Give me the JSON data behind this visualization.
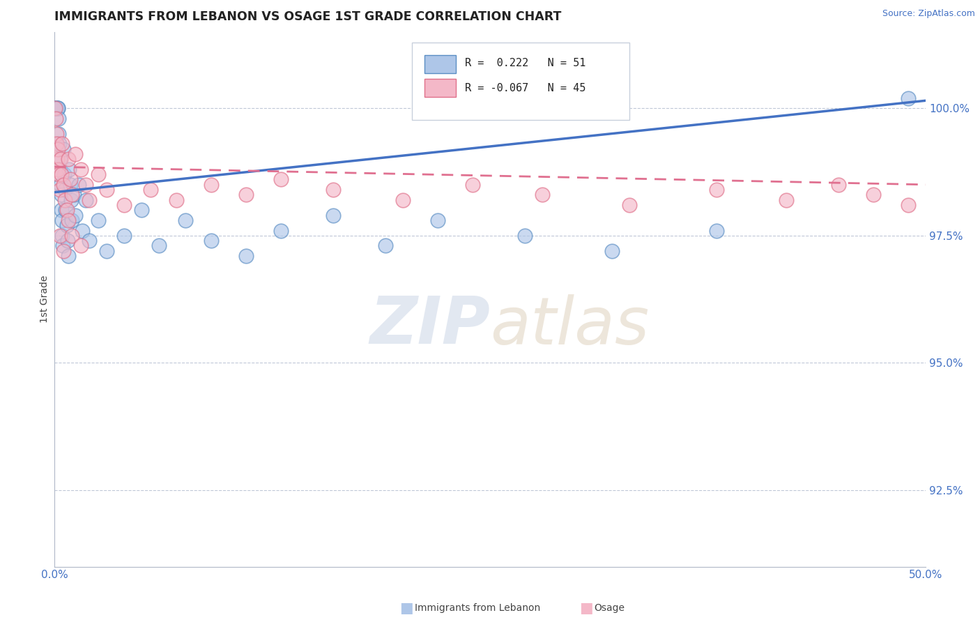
{
  "title": "IMMIGRANTS FROM LEBANON VS OSAGE 1ST GRADE CORRELATION CHART",
  "source_text": "Source: ZipAtlas.com",
  "ylabel": "1st Grade",
  "xlim": [
    0.0,
    50.0
  ],
  "ylim": [
    91.0,
    101.5
  ],
  "yticks": [
    92.5,
    95.0,
    97.5,
    100.0
  ],
  "ytick_labels": [
    "92.5%",
    "95.0%",
    "97.5%",
    "100.0%"
  ],
  "blue_R": 0.222,
  "blue_N": 51,
  "pink_R": -0.067,
  "pink_N": 45,
  "blue_color": "#aec6e8",
  "pink_color": "#f4b8c8",
  "blue_edge_color": "#5b8ec4",
  "pink_edge_color": "#e0708a",
  "blue_line_color": "#4472c4",
  "pink_line_color": "#e07090",
  "blue_trend_x0": 0.0,
  "blue_trend_y0": 98.35,
  "blue_trend_x1": 50.0,
  "blue_trend_y1": 100.15,
  "pink_trend_x0": 0.0,
  "pink_trend_y0": 98.85,
  "pink_trend_x1": 50.0,
  "pink_trend_y1": 98.5,
  "blue_x": [
    0.05,
    0.08,
    0.1,
    0.12,
    0.15,
    0.18,
    0.2,
    0.22,
    0.25,
    0.28,
    0.3,
    0.32,
    0.35,
    0.38,
    0.4,
    0.42,
    0.45,
    0.48,
    0.5,
    0.55,
    0.6,
    0.65,
    0.7,
    0.75,
    0.8,
    0.85,
    0.9,
    0.95,
    1.0,
    1.1,
    1.2,
    1.4,
    1.6,
    1.8,
    2.0,
    2.5,
    3.0,
    4.0,
    5.0,
    6.0,
    7.5,
    9.0,
    11.0,
    13.0,
    16.0,
    19.0,
    22.0,
    27.0,
    32.0,
    38.0,
    49.0
  ],
  "blue_y": [
    100.0,
    100.0,
    100.0,
    100.0,
    100.0,
    100.0,
    100.0,
    99.8,
    99.5,
    99.3,
    99.0,
    98.8,
    98.5,
    98.3,
    98.0,
    97.8,
    97.5,
    97.3,
    99.2,
    98.7,
    98.4,
    98.0,
    97.7,
    97.4,
    97.1,
    98.8,
    98.5,
    98.2,
    97.8,
    98.3,
    97.9,
    98.5,
    97.6,
    98.2,
    97.4,
    97.8,
    97.2,
    97.5,
    98.0,
    97.3,
    97.8,
    97.4,
    97.1,
    97.6,
    97.9,
    97.3,
    97.8,
    97.5,
    97.2,
    97.6,
    100.2
  ],
  "pink_x": [
    0.05,
    0.08,
    0.1,
    0.12,
    0.15,
    0.18,
    0.2,
    0.25,
    0.3,
    0.35,
    0.4,
    0.45,
    0.5,
    0.6,
    0.7,
    0.8,
    0.9,
    1.0,
    1.2,
    1.5,
    1.8,
    2.0,
    2.5,
    3.0,
    4.0,
    5.5,
    7.0,
    9.0,
    11.0,
    13.0,
    16.0,
    20.0,
    24.0,
    28.0,
    33.0,
    38.0,
    42.0,
    45.0,
    47.0,
    49.0,
    0.3,
    0.5,
    0.8,
    1.0,
    1.5
  ],
  "pink_y": [
    100.0,
    99.8,
    99.5,
    99.3,
    99.0,
    98.8,
    99.2,
    98.7,
    98.4,
    99.0,
    98.7,
    99.3,
    98.5,
    98.2,
    98.0,
    99.0,
    98.6,
    98.3,
    99.1,
    98.8,
    98.5,
    98.2,
    98.7,
    98.4,
    98.1,
    98.4,
    98.2,
    98.5,
    98.3,
    98.6,
    98.4,
    98.2,
    98.5,
    98.3,
    98.1,
    98.4,
    98.2,
    98.5,
    98.3,
    98.1,
    97.5,
    97.2,
    97.8,
    97.5,
    97.3
  ]
}
